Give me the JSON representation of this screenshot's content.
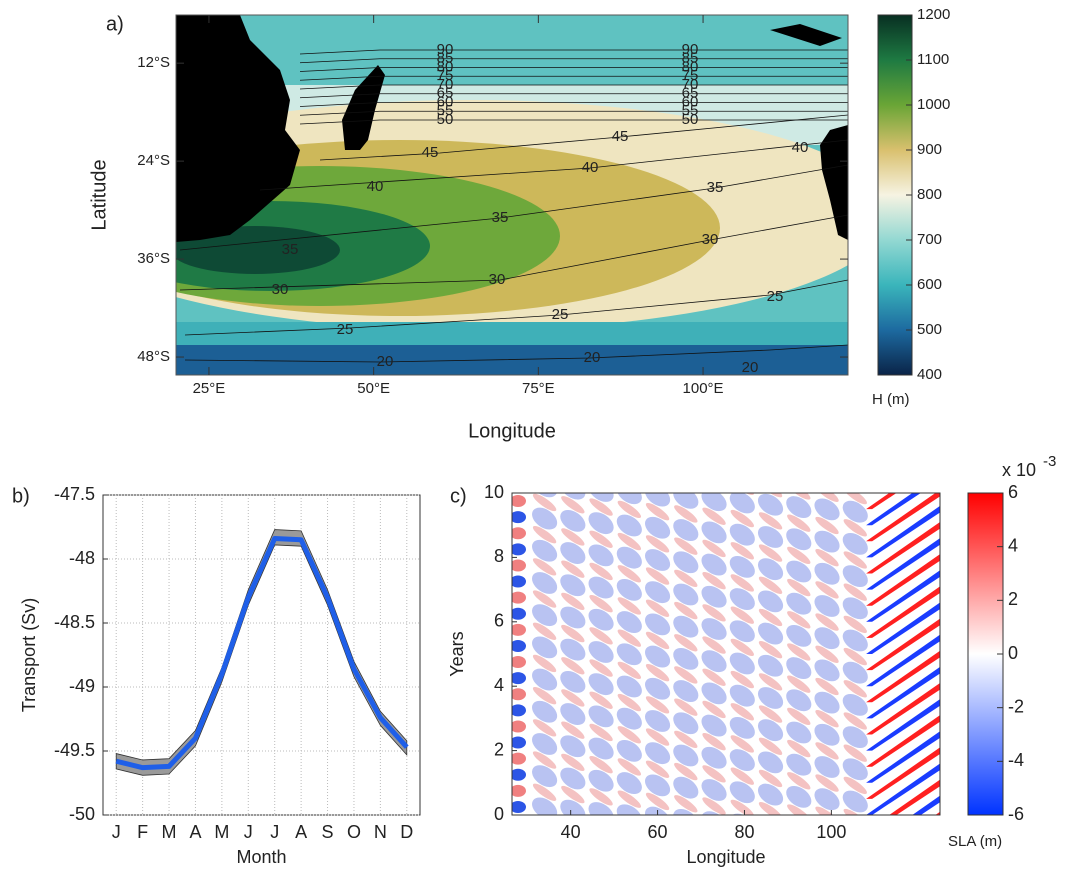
{
  "chart_data": [
    {
      "type": "map",
      "panel_label": "a)",
      "xlabel": "Longitude",
      "ylabel": "Latitude",
      "xlim": [
        20,
        122
      ],
      "ylim": [
        -50.2,
        -6.1
      ],
      "xticks": [
        {
          "value": 25,
          "label": "25°E"
        },
        {
          "value": 50,
          "label": "50°E"
        },
        {
          "value": 75,
          "label": "75°E"
        },
        {
          "value": 100,
          "label": "100°E"
        }
      ],
      "yticks": [
        {
          "value": -12,
          "label": "12°S"
        },
        {
          "value": -24,
          "label": "24°S"
        },
        {
          "value": -36,
          "label": "36°S"
        },
        {
          "value": -48,
          "label": "48°S"
        }
      ],
      "contour_levels": [
        20,
        25,
        30,
        35,
        40,
        45,
        50,
        55,
        60,
        65,
        70,
        75,
        80,
        85,
        90
      ],
      "colorbar": {
        "label": "H (m)",
        "lim": [
          400,
          1200
        ],
        "ticks": [
          400,
          500,
          600,
          700,
          800,
          900,
          1000,
          1100,
          1200
        ]
      }
    },
    {
      "type": "line",
      "panel_label": "b)",
      "xlabel": "Month",
      "ylabel": "Transport (Sv)",
      "categories": [
        "J",
        "F",
        "M",
        "A",
        "M",
        "J",
        "J",
        "A",
        "S",
        "O",
        "N",
        "D"
      ],
      "values": [
        -49.58,
        -49.63,
        -49.62,
        -49.4,
        -48.9,
        -48.3,
        -47.84,
        -47.85,
        -48.3,
        -48.86,
        -49.24,
        -49.47
      ],
      "band": {
        "upper": [
          -49.52,
          -49.57,
          -49.56,
          -49.34,
          -48.85,
          -48.24,
          -47.77,
          -47.78,
          -48.24,
          -48.8,
          -49.19,
          -49.42
        ],
        "lower": [
          -49.64,
          -49.69,
          -49.68,
          -49.46,
          -48.96,
          -48.36,
          -47.89,
          -47.9,
          -48.36,
          -48.92,
          -49.3,
          -49.53
        ]
      },
      "color": "#1f5fe8",
      "band_color": "#9a9a9a",
      "ylim": [
        -50,
        -47.5
      ],
      "yticks": [
        -50,
        -49.5,
        -49,
        -48.5,
        -48,
        -47.5
      ],
      "grid": true
    },
    {
      "type": "heatmap",
      "panel_label": "c)",
      "xlabel": "Longitude",
      "ylabel": "Years",
      "xlim": [
        26.5,
        125
      ],
      "xticks": [
        40,
        60,
        80,
        100
      ],
      "ylim": [
        0,
        10
      ],
      "yticks": [
        0,
        2,
        4,
        6,
        8,
        10
      ],
      "colorbar": {
        "label": "SLA (m)",
        "multiplier": "x 10",
        "exponent": "-3",
        "lim": [
          -6,
          6
        ],
        "ticks": [
          -6,
          -4,
          -2,
          0,
          2,
          4,
          6
        ]
      }
    }
  ]
}
